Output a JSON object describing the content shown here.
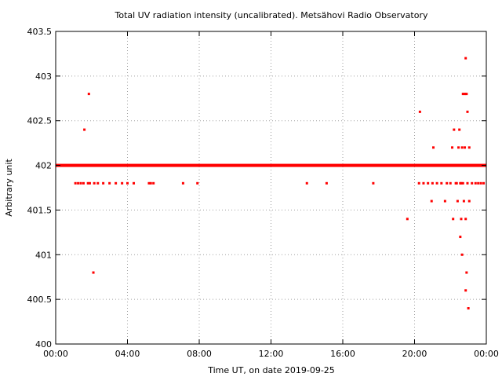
{
  "chart_data": {
    "type": "scatter",
    "title": "Total UV radiation intensity (uncalibrated). Metsähovi Radio Observatory",
    "xlabel": "Time UT, on date 2019-09-25",
    "ylabel": "Arbitrary unit",
    "xlim": [
      0,
      24
    ],
    "ylim": [
      400,
      403.5
    ],
    "x_ticks": [
      {
        "value": 0,
        "label": "00:00"
      },
      {
        "value": 4,
        "label": "04:00"
      },
      {
        "value": 8,
        "label": "08:00"
      },
      {
        "value": 12,
        "label": "12:00"
      },
      {
        "value": 16,
        "label": "16:00"
      },
      {
        "value": 20,
        "label": "20:00"
      },
      {
        "value": 24,
        "label": "00:00"
      }
    ],
    "y_ticks": [
      {
        "value": 400,
        "label": "400"
      },
      {
        "value": 400.5,
        "label": "400.5"
      },
      {
        "value": 401,
        "label": "401"
      },
      {
        "value": 401.5,
        "label": "401.5"
      },
      {
        "value": 402,
        "label": "402"
      },
      {
        "value": 402.5,
        "label": "402.5"
      },
      {
        "value": 403,
        "label": "403"
      },
      {
        "value": 403.5,
        "label": "403.5"
      }
    ],
    "grid": true,
    "color": "#ff0000",
    "baseline": {
      "y": 402,
      "x_start": 0,
      "x_end": 24
    },
    "points": [
      [
        1.1,
        401.8
      ],
      [
        1.25,
        401.8
      ],
      [
        1.4,
        401.8
      ],
      [
        1.55,
        401.8
      ],
      [
        1.6,
        402.4
      ],
      [
        1.85,
        402.8
      ],
      [
        1.8,
        401.8
      ],
      [
        1.9,
        401.8
      ],
      [
        2.1,
        400.8
      ],
      [
        2.15,
        401.8
      ],
      [
        2.35,
        401.8
      ],
      [
        2.65,
        401.8
      ],
      [
        3.0,
        401.8
      ],
      [
        3.35,
        401.8
      ],
      [
        3.7,
        401.8
      ],
      [
        4.0,
        401.8
      ],
      [
        4.35,
        401.8
      ],
      [
        5.2,
        401.8
      ],
      [
        5.3,
        401.8
      ],
      [
        5.45,
        401.8
      ],
      [
        7.1,
        401.8
      ],
      [
        7.9,
        401.8
      ],
      [
        14.0,
        401.8
      ],
      [
        15.1,
        401.8
      ],
      [
        17.7,
        401.8
      ],
      [
        19.6,
        401.4
      ],
      [
        20.3,
        402.6
      ],
      [
        20.25,
        401.8
      ],
      [
        20.5,
        401.8
      ],
      [
        20.75,
        401.8
      ],
      [
        20.95,
        401.6
      ],
      [
        21.05,
        402.2
      ],
      [
        21.0,
        401.8
      ],
      [
        21.25,
        401.8
      ],
      [
        21.5,
        401.8
      ],
      [
        21.7,
        401.6
      ],
      [
        21.8,
        401.8
      ],
      [
        22.0,
        401.8
      ],
      [
        22.1,
        402.2
      ],
      [
        22.2,
        402.4
      ],
      [
        22.15,
        401.4
      ],
      [
        22.3,
        401.8
      ],
      [
        22.4,
        401.6
      ],
      [
        22.45,
        402.2
      ],
      [
        22.5,
        402.4
      ],
      [
        22.55,
        401.2
      ],
      [
        22.6,
        401.4
      ],
      [
        22.65,
        402.2
      ],
      [
        22.65,
        401.0
      ],
      [
        22.7,
        402.8
      ],
      [
        22.75,
        401.6
      ],
      [
        22.8,
        402.8
      ],
      [
        22.8,
        402.2
      ],
      [
        22.85,
        403.2
      ],
      [
        22.85,
        401.4
      ],
      [
        22.9,
        402.8
      ],
      [
        22.9,
        400.8
      ],
      [
        22.85,
        400.6
      ],
      [
        22.95,
        402.6
      ],
      [
        22.95,
        401.8
      ],
      [
        23.0,
        400.4
      ],
      [
        23.05,
        402.2
      ],
      [
        23.05,
        401.6
      ],
      [
        23.2,
        401.8
      ],
      [
        23.4,
        401.8
      ],
      [
        23.55,
        401.8
      ],
      [
        23.7,
        401.8
      ],
      [
        23.85,
        401.8
      ],
      [
        22.35,
        401.8
      ],
      [
        22.55,
        401.8
      ],
      [
        22.6,
        401.8
      ],
      [
        22.7,
        401.8
      ]
    ]
  }
}
